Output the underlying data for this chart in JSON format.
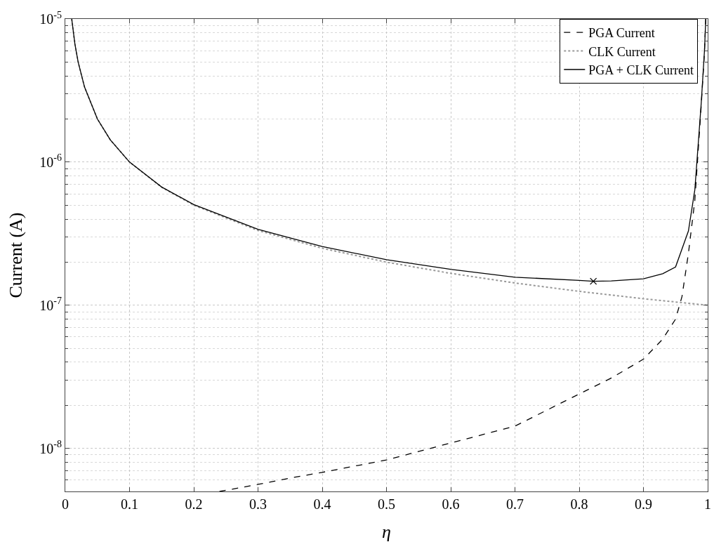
{
  "chart_data": {
    "type": "line",
    "xlabel": "η",
    "ylabel": "Current (A)",
    "log": "y",
    "grid": true,
    "legend": "top right",
    "xlim": [
      0,
      1
    ],
    "xticks": [
      0,
      0.1,
      0.2,
      0.3,
      0.4,
      0.5,
      0.6,
      0.7,
      0.8,
      0.9,
      1
    ],
    "ylim": [
      5e-09,
      1e-05
    ],
    "yticks": [
      {
        "value": 1e-08,
        "label": "10$^{-8}$"
      },
      {
        "value": 1e-07,
        "label": "10$^{-7}$"
      },
      {
        "value": 1e-06,
        "label": "10$^{-6}$"
      },
      {
        "value": 1e-05,
        "label": "10$^{-5}$"
      }
    ],
    "series": [
      {
        "name": "PGA Current",
        "color": "#000000",
        "line_style": "dashed",
        "x": [
          0.24,
          0.3,
          0.35,
          0.4,
          0.5,
          0.6,
          0.7,
          0.8,
          0.85,
          0.9,
          0.93,
          0.95,
          0.96,
          0.97,
          0.98,
          0.99,
          0.995,
          0.997
        ],
        "values": [
          5e-09,
          5.6e-09,
          6.2e-09,
          6.8e-09,
          8.3e-09,
          1.09e-08,
          1.43e-08,
          2.4e-08,
          3.1e-08,
          4.2e-08,
          5.8e-08,
          8e-08,
          1.15e-07,
          2.3e-07,
          5.4e-07,
          2.5e-06,
          5.9e-06,
          1e-05
        ]
      },
      {
        "name": "CLK Current",
        "color": "#999999",
        "line_style": "dotted",
        "x": [
          0.01,
          0.015,
          0.02,
          0.03,
          0.05,
          0.07,
          0.1,
          0.15,
          0.2,
          0.3,
          0.4,
          0.5,
          0.6,
          0.7,
          0.8,
          0.9,
          1
        ],
        "values": [
          1e-05,
          6.67e-06,
          5e-06,
          3.33e-06,
          2e-06,
          1.43e-06,
          1e-06,
          6.67e-07,
          5e-07,
          3.33e-07,
          2.5e-07,
          2e-07,
          1.67e-07,
          1.43e-07,
          1.25e-07,
          1.11e-07,
          1e-07
        ]
      },
      {
        "name": "PGA + CLK Current",
        "color": "#000000",
        "line_style": "solid",
        "x": [
          0.01,
          0.015,
          0.02,
          0.03,
          0.05,
          0.07,
          0.1,
          0.15,
          0.2,
          0.3,
          0.4,
          0.5,
          0.6,
          0.7,
          0.8,
          0.822,
          0.85,
          0.9,
          0.93,
          0.95,
          0.97,
          0.98,
          0.99,
          0.995,
          0.997
        ],
        "values": [
          1e-05,
          6.67e-06,
          5e-06,
          3.34e-06,
          2e-06,
          1.43e-06,
          1e-06,
          6.7e-07,
          5.05e-07,
          3.39e-07,
          2.57e-07,
          2.08e-07,
          1.78e-07,
          1.57e-07,
          1.49e-07,
          1.47e-07,
          1.48e-07,
          1.53e-07,
          1.66e-07,
          1.85e-07,
          3.3e-07,
          6.4e-07,
          2.6e-06,
          6e-06,
          1e-05
        ]
      },
      {
        "type": "scatter",
        "marker": "cross",
        "color": "#000000",
        "x": [
          0.822
        ],
        "values": [
          1.47e-07
        ]
      }
    ]
  }
}
